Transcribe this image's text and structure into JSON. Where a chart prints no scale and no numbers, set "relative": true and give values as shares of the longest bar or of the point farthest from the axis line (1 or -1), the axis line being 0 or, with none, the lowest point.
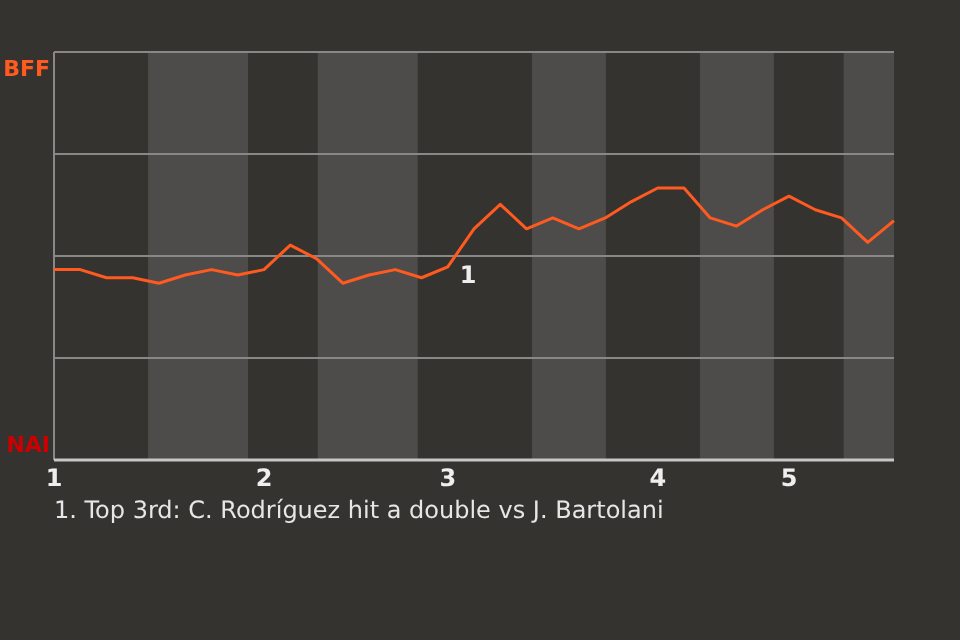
{
  "chart_data": {
    "type": "line",
    "relative": true,
    "categories": [
      "1",
      null,
      null,
      null,
      null,
      null,
      null,
      null,
      "2",
      null,
      null,
      null,
      null,
      null,
      null,
      "3",
      null,
      null,
      null,
      null,
      null,
      null,
      null,
      "4",
      null,
      null,
      null,
      null,
      "5",
      null,
      null,
      null,
      null
    ],
    "series": [
      {
        "color": "#ff5a1f",
        "values": [
          0.7,
          0.7,
          0.67,
          0.67,
          0.65,
          0.68,
          0.7,
          0.68,
          0.7,
          0.79,
          0.74,
          0.65,
          0.68,
          0.7,
          0.67,
          0.71,
          0.85,
          0.94,
          0.85,
          0.89,
          0.85,
          0.89,
          0.95,
          1,
          1,
          0.89,
          0.86,
          0.92,
          0.97,
          0.92,
          0.89,
          0.8,
          0.88
        ]
      }
    ],
    "marker": "none",
    "line_style": "solid",
    "ref_lines": [
      {
        "axis": "y",
        "value": 0.375,
        "color": "#8a8886"
      },
      {
        "axis": "y",
        "value": 0.75,
        "color": "#8a8886"
      },
      {
        "axis": "y",
        "value": 1.125,
        "color": "#8a8886"
      },
      {
        "axis": "y",
        "value": 1.5,
        "color": "#8a8886"
      }
    ],
    "annotations": [
      "BFF",
      "NAI",
      {
        "text": "1",
        "x": "3",
        "y": 0.71
      },
      "1. Top 3rd: C. Rodríguez hit a double vs J. Bartolani"
    ]
  }
}
